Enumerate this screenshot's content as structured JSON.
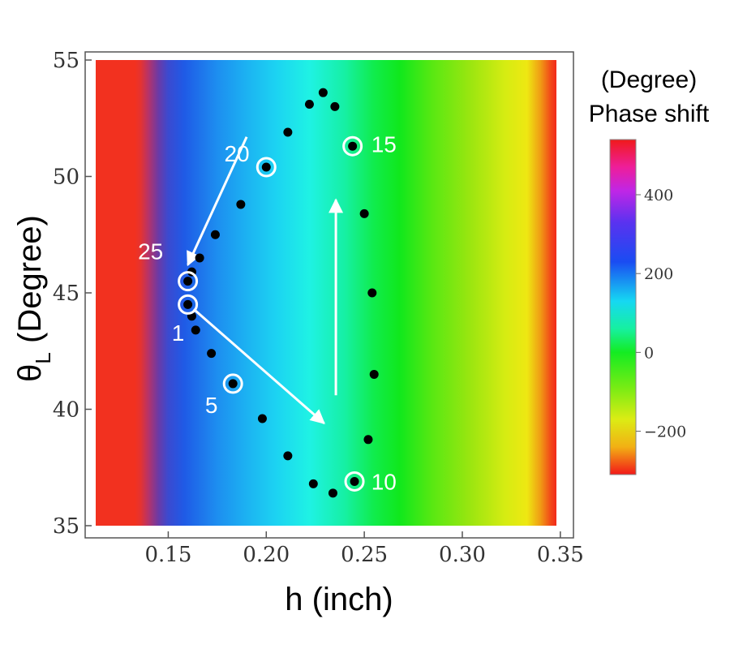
{
  "chart_data": {
    "type": "heatmap",
    "xlabel": "h (inch)",
    "ylabel_main": "θ",
    "ylabel_sub": "L",
    "ylabel_rest": " (Degree)",
    "xlim": [
      0.113,
      0.348
    ],
    "ylim": [
      35,
      55
    ],
    "x_ticks": [
      0.15,
      0.2,
      0.25,
      0.3,
      0.35
    ],
    "x_tick_labels": [
      "0.15",
      "0.20",
      "0.25",
      "0.30",
      "0.35"
    ],
    "y_ticks": [
      35,
      40,
      45,
      50,
      55
    ],
    "y_tick_labels": [
      "35",
      "40",
      "45",
      "50",
      "55"
    ],
    "colorbar": {
      "title_line1": "(Degree)",
      "title_line2": "Phase shift",
      "range": [
        -310,
        540
      ],
      "ticks": [
        -200,
        0,
        200,
        400
      ],
      "tick_labels": [
        "−200",
        "0",
        "200",
        "400"
      ]
    },
    "heatmap_columns": [
      {
        "h": 0.113,
        "color": "#f2311f"
      },
      {
        "h": 0.133,
        "color": "#f2311f"
      },
      {
        "h": 0.136,
        "color": "#e43332"
      },
      {
        "h": 0.14,
        "color": "#b4336b"
      },
      {
        "h": 0.145,
        "color": "#6a3aa6"
      },
      {
        "h": 0.15,
        "color": "#3b4ad0"
      },
      {
        "h": 0.158,
        "color": "#1f5ae6"
      },
      {
        "h": 0.175,
        "color": "#1d8ef0"
      },
      {
        "h": 0.19,
        "color": "#1cb2f2"
      },
      {
        "h": 0.205,
        "color": "#1cd3f2"
      },
      {
        "h": 0.222,
        "color": "#1ff2e4"
      },
      {
        "h": 0.24,
        "color": "#16f0a4"
      },
      {
        "h": 0.255,
        "color": "#10ec4c"
      },
      {
        "h": 0.268,
        "color": "#10e81c"
      },
      {
        "h": 0.285,
        "color": "#5ae812"
      },
      {
        "h": 0.305,
        "color": "#9ee610"
      },
      {
        "h": 0.322,
        "color": "#d6ec12"
      },
      {
        "h": 0.333,
        "color": "#eee812"
      },
      {
        "h": 0.34,
        "color": "#f09a14"
      },
      {
        "h": 0.345,
        "color": "#f24a18"
      },
      {
        "h": 0.348,
        "color": "#f22a1a"
      }
    ],
    "colorbar_stops": [
      {
        "value": 540,
        "color": "#f01a1a"
      },
      {
        "value": 470,
        "color": "#ee1e9a"
      },
      {
        "value": 410,
        "color": "#c026e6"
      },
      {
        "value": 330,
        "color": "#5a32f0"
      },
      {
        "value": 230,
        "color": "#1a4cf2"
      },
      {
        "value": 130,
        "color": "#16d8f2"
      },
      {
        "value": 60,
        "color": "#16f0a0"
      },
      {
        "value": 0,
        "color": "#14ec22"
      },
      {
        "value": -90,
        "color": "#78ec14"
      },
      {
        "value": -170,
        "color": "#dcec14"
      },
      {
        "value": -240,
        "color": "#f2b014"
      },
      {
        "value": -310,
        "color": "#f21818"
      }
    ],
    "series": [
      {
        "points": [
          {
            "x": 0.16,
            "y": 44.5
          },
          {
            "x": 0.162,
            "y": 44.0
          },
          {
            "x": 0.164,
            "y": 43.4
          },
          {
            "x": 0.172,
            "y": 42.4
          },
          {
            "x": 0.183,
            "y": 41.1
          },
          {
            "x": 0.198,
            "y": 39.6
          },
          {
            "x": 0.211,
            "y": 38.0
          },
          {
            "x": 0.224,
            "y": 36.8
          },
          {
            "x": 0.234,
            "y": 36.4
          },
          {
            "x": 0.245,
            "y": 36.9
          },
          {
            "x": 0.252,
            "y": 38.7
          },
          {
            "x": 0.255,
            "y": 41.5
          },
          {
            "x": 0.254,
            "y": 45.0
          },
          {
            "x": 0.25,
            "y": 48.4
          },
          {
            "x": 0.244,
            "y": 51.3
          },
          {
            "x": 0.235,
            "y": 53.0
          },
          {
            "x": 0.229,
            "y": 53.6
          },
          {
            "x": 0.222,
            "y": 53.1
          },
          {
            "x": 0.211,
            "y": 51.9
          },
          {
            "x": 0.2,
            "y": 50.4
          },
          {
            "x": 0.187,
            "y": 48.8
          },
          {
            "x": 0.174,
            "y": 47.5
          },
          {
            "x": 0.166,
            "y": 46.5
          },
          {
            "x": 0.162,
            "y": 45.9
          },
          {
            "x": 0.16,
            "y": 45.5
          }
        ]
      }
    ],
    "highlighted": [
      {
        "label": "1",
        "x": 0.16,
        "y": 44.5,
        "label_x": 0.155,
        "label_y": 43.3
      },
      {
        "label": "5",
        "x": 0.183,
        "y": 41.1,
        "label_x": 0.172,
        "label_y": 40.2
      },
      {
        "label": "10",
        "x": 0.245,
        "y": 36.9,
        "label_x": 0.26,
        "label_y": 36.9
      },
      {
        "label": "15",
        "x": 0.244,
        "y": 51.3,
        "label_x": 0.26,
        "label_y": 51.4
      },
      {
        "label": "20",
        "x": 0.2,
        "y": 50.4,
        "label_x": 0.185,
        "label_y": 51.0
      },
      {
        "label": "25",
        "x": 0.16,
        "y": 45.5,
        "label_x": 0.141,
        "label_y": 46.8
      }
    ],
    "arrows": [
      {
        "x1": 0.19,
        "y1": 51.7,
        "x2": 0.16,
        "y2": 46.2
      },
      {
        "x1": 0.163,
        "y1": 44.3,
        "x2": 0.2295,
        "y2": 39.4
      },
      {
        "x1": 0.2355,
        "y1": 40.6,
        "x2": 0.2355,
        "y2": 49.0
      }
    ]
  }
}
